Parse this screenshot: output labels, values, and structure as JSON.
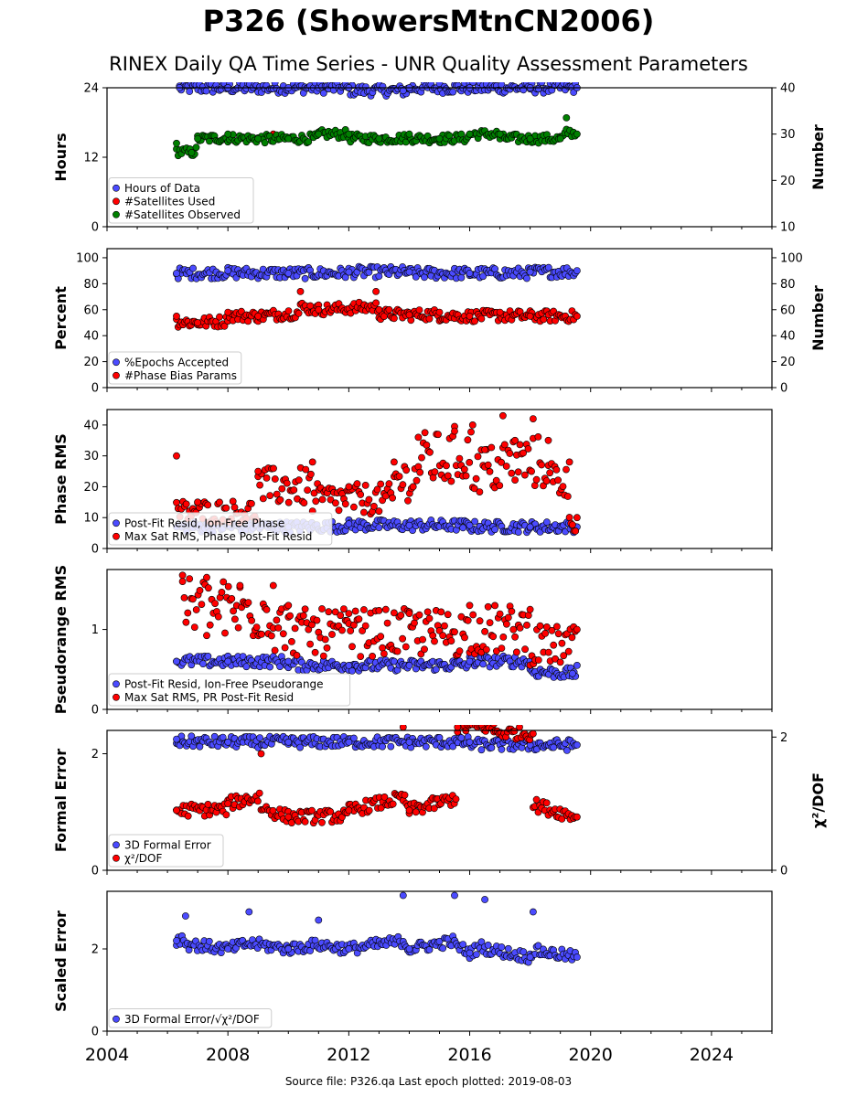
{
  "title": "P326 (ShowersMtnCN2006)",
  "subtitle": "RINEX Daily QA Time Series - UNR Quality Assessment Parameters",
  "footer": "Source file: P326.qa Last epoch plotted: 2019-08-03",
  "colors": {
    "blue": "#4b4bff",
    "red": "#ff0000",
    "green": "#008000",
    "edge": "#000000"
  },
  "chart_data": [
    {
      "type": "scatter",
      "ylabel": "Hours",
      "y2label": "Number",
      "xlim": [
        2004,
        2026
      ],
      "ylim": [
        0,
        24
      ],
      "y2lim": [
        10,
        40
      ],
      "yticks": [
        "0",
        "12",
        "24"
      ],
      "y2ticks": [
        "10",
        "20",
        "30",
        "40"
      ],
      "xticks": [
        "2004",
        "2008",
        "2012",
        "2016",
        "2020",
        "2024"
      ],
      "legend": [
        "Hours of Data",
        "#Satellites Used",
        "#Satellites Observed"
      ],
      "legend_position": "bottom-left",
      "series": [
        {
          "name": "Hours of Data",
          "axis": "left",
          "color": "blue",
          "points": [
            [
              2006.4,
              24
            ],
            [
              2008,
              24
            ],
            [
              2010,
              24
            ],
            [
              2012,
              24
            ],
            [
              2013.8,
              23.5
            ],
            [
              2014,
              24
            ],
            [
              2016,
              24
            ],
            [
              2018,
              24
            ],
            [
              2019.55,
              24
            ]
          ]
        },
        {
          "name": "#Satellites Used",
          "axis": "right",
          "color": "red",
          "points": [
            [
              2009.5,
              30
            ]
          ]
        },
        {
          "name": "#Satellites Observed",
          "axis": "right",
          "color": "green",
          "points": [
            [
              2006.3,
              28
            ],
            [
              2006.8,
              26
            ],
            [
              2007,
              29
            ],
            [
              2008,
              30
            ],
            [
              2009,
              29
            ],
            [
              2010,
              29
            ],
            [
              2011,
              30
            ],
            [
              2012,
              30
            ],
            [
              2013,
              29
            ],
            [
              2014,
              30
            ],
            [
              2015,
              29
            ],
            [
              2016,
              30
            ],
            [
              2017,
              30
            ],
            [
              2018,
              29
            ],
            [
              2019,
              29
            ],
            [
              2019.2,
              33.5
            ],
            [
              2019.55,
              30
            ]
          ]
        }
      ]
    },
    {
      "type": "scatter",
      "ylabel": "Percent",
      "y2label": "Number",
      "xlim": [
        2004,
        2026
      ],
      "ylim": [
        0,
        107
      ],
      "y2lim": [
        0,
        107
      ],
      "yticks": [
        "0",
        "20",
        "40",
        "60",
        "80",
        "100"
      ],
      "y2ticks": [
        "0",
        "20",
        "40",
        "60",
        "80",
        "100"
      ],
      "xticks": [
        "2004",
        "2008",
        "2012",
        "2016",
        "2020",
        "2024"
      ],
      "legend": [
        "%Epochs Accepted",
        "#Phase Bias Params"
      ],
      "legend_position": "bottom-left",
      "series": [
        {
          "name": "%Epochs Accepted",
          "axis": "left",
          "color": "blue",
          "points": [
            [
              2006.3,
              88
            ],
            [
              2008,
              90
            ],
            [
              2010,
              88
            ],
            [
              2012,
              89
            ],
            [
              2014,
              89
            ],
            [
              2016,
              88
            ],
            [
              2018,
              89
            ],
            [
              2019.55,
              90
            ]
          ]
        },
        {
          "name": "#Phase Bias Params",
          "axis": "right",
          "color": "red",
          "points": [
            [
              2006.3,
              55
            ],
            [
              2007,
              50
            ],
            [
              2008,
              58
            ],
            [
              2009,
              55
            ],
            [
              2010.4,
              74
            ],
            [
              2011,
              60
            ],
            [
              2012.9,
              74
            ],
            [
              2013,
              60
            ],
            [
              2014,
              56
            ],
            [
              2015,
              58
            ],
            [
              2016,
              55
            ],
            [
              2017,
              58
            ],
            [
              2018,
              55
            ],
            [
              2019.55,
              55
            ]
          ]
        }
      ]
    },
    {
      "type": "scatter",
      "ylabel": "Phase RMS",
      "xlim": [
        2004,
        2026
      ],
      "ylim": [
        0,
        45
      ],
      "yticks": [
        "0",
        "10",
        "20",
        "30",
        "40"
      ],
      "xticks": [
        "2004",
        "2008",
        "2012",
        "2016",
        "2020",
        "2024"
      ],
      "legend": [
        "Post-Fit Resid, Ion-Free Phase",
        "Max Sat RMS, Phase Post-Fit Resid"
      ],
      "legend_position": "bottom-left",
      "series": [
        {
          "name": "Post-Fit Resid, Ion-Free Phase",
          "axis": "left",
          "color": "blue",
          "points": [
            [
              2006.3,
              7
            ],
            [
              2008,
              7.5
            ],
            [
              2010,
              7
            ],
            [
              2012,
              8
            ],
            [
              2014,
              7.5
            ],
            [
              2016,
              7.5
            ],
            [
              2018,
              7
            ],
            [
              2019.55,
              7
            ]
          ]
        },
        {
          "name": "Max Sat RMS, Phase Post-Fit Resid",
          "axis": "left",
          "color": "red",
          "points": [
            [
              2006.3,
              30
            ],
            [
              2007,
              15
            ],
            [
              2009,
              25
            ],
            [
              2010.8,
              28
            ],
            [
              2012,
              20
            ],
            [
              2013.5,
              28
            ],
            [
              2014.3,
              36
            ],
            [
              2015.5,
              38
            ],
            [
              2016.1,
              40
            ],
            [
              2016.5,
              32
            ],
            [
              2017.1,
              43
            ],
            [
              2017.5,
              35
            ],
            [
              2018.1,
              42
            ],
            [
              2018.6,
              35
            ],
            [
              2019.3,
              28
            ],
            [
              2019.55,
              10
            ]
          ]
        }
      ]
    },
    {
      "type": "scatter",
      "ylabel": "Pseudorange RMS",
      "xlim": [
        2004,
        2026
      ],
      "ylim": [
        0,
        1.75
      ],
      "yticks": [
        "0",
        "1"
      ],
      "xticks": [
        "2004",
        "2008",
        "2012",
        "2016",
        "2020",
        "2024"
      ],
      "legend": [
        "Post-Fit Resid, Ion-Free Pseudorange",
        "Max Sat RMS, PR Post-Fit Resid"
      ],
      "legend_position": "bottom-left",
      "series": [
        {
          "name": "Post-Fit Resid, Ion-Free Pseudorange",
          "axis": "left",
          "color": "blue",
          "points": [
            [
              2006.3,
              0.6
            ],
            [
              2008,
              0.6
            ],
            [
              2010,
              0.6
            ],
            [
              2012,
              0.55
            ],
            [
              2014,
              0.55
            ],
            [
              2016,
              0.6
            ],
            [
              2018,
              0.6
            ],
            [
              2019.4,
              0.45
            ],
            [
              2019.55,
              0.55
            ]
          ]
        },
        {
          "name": "Max Sat RMS, PR Post-Fit Resid",
          "axis": "left",
          "color": "red",
          "points": [
            [
              2006.5,
              1.6
            ],
            [
              2007.3,
              1.65
            ],
            [
              2008.4,
              1.55
            ],
            [
              2009.5,
              1.55
            ],
            [
              2010,
              1.3
            ],
            [
              2012,
              1.2
            ],
            [
              2014,
              1.2
            ],
            [
              2016,
              1.3
            ],
            [
              2018,
              1.25
            ],
            [
              2019.55,
              1.0
            ]
          ]
        }
      ]
    },
    {
      "type": "scatter",
      "ylabel": "Formal Error",
      "y2label": "χ²/DOF",
      "xlim": [
        2004,
        2026
      ],
      "ylim": [
        0,
        2.4
      ],
      "y2lim": [
        0,
        2.1
      ],
      "yticks": [
        "0",
        "2"
      ],
      "y2ticks": [
        "0",
        "2"
      ],
      "xticks": [
        "2004",
        "2008",
        "2012",
        "2016",
        "2020",
        "2024"
      ],
      "legend": [
        "3D Formal Error",
        "χ²/DOF"
      ],
      "legend_position": "bottom-left",
      "series": [
        {
          "name": "3D Formal Error",
          "axis": "left",
          "color": "blue",
          "points": [
            [
              2006.3,
              2.25
            ],
            [
              2008,
              2.2
            ],
            [
              2010,
              2.2
            ],
            [
              2012,
              2.2
            ],
            [
              2014,
              2.2
            ],
            [
              2016,
              2.2
            ],
            [
              2018,
              2.15
            ],
            [
              2019.55,
              2.15
            ]
          ]
        },
        {
          "name": "χ²/DOF",
          "axis": "right",
          "color": "red",
          "points": [
            [
              2006.3,
              0.9
            ],
            [
              2008,
              1.0
            ],
            [
              2009.1,
              1.75
            ],
            [
              2010,
              0.8
            ],
            [
              2012,
              0.9
            ],
            [
              2013.8,
              2.15
            ],
            [
              2014,
              0.9
            ],
            [
              2015.6,
              2.15
            ],
            [
              2016.8,
              2.2
            ],
            [
              2018.1,
              2.05
            ],
            [
              2019.55,
              0.8
            ]
          ]
        }
      ]
    },
    {
      "type": "scatter",
      "ylabel": "Scaled Error",
      "xlim": [
        2004,
        2026
      ],
      "ylim": [
        0,
        3.4
      ],
      "yticks": [
        "0",
        "2"
      ],
      "xticks": [
        "2004",
        "2008",
        "2012",
        "2016",
        "2020",
        "2024"
      ],
      "legend": [
        "3D Formal Error/√χ²/DOF"
      ],
      "legend_position": "bottom-left",
      "series": [
        {
          "name": "3D Formal Error/√χ²/DOF",
          "axis": "left",
          "color": "blue",
          "points": [
            [
              2006.3,
              2.2
            ],
            [
              2006.6,
              2.8
            ],
            [
              2008,
              2.0
            ],
            [
              2008.7,
              2.9
            ],
            [
              2010,
              2.0
            ],
            [
              2011,
              2.7
            ],
            [
              2012,
              2.0
            ],
            [
              2013.8,
              3.3
            ],
            [
              2014,
              2.0
            ],
            [
              2015.5,
              3.3
            ],
            [
              2016,
              1.9
            ],
            [
              2016.5,
              3.2
            ],
            [
              2018,
              1.8
            ],
            [
              2018.1,
              2.9
            ],
            [
              2019.55,
              1.8
            ]
          ]
        }
      ]
    }
  ]
}
